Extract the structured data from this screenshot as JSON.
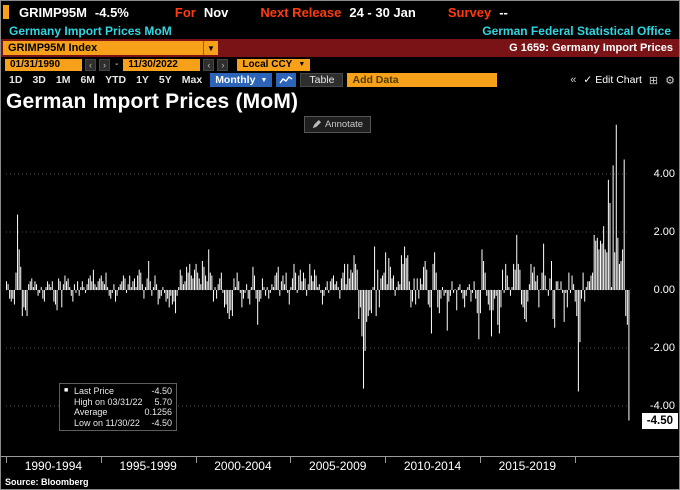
{
  "icons": {
    "dropdown": "▼",
    "prev": "‹",
    "next": "›",
    "collapse": "«",
    "check": "✓",
    "gear": "⚙",
    "grid": "⊞",
    "legend_marker": "■"
  },
  "colors": {
    "amber": "#f7a11a",
    "maroon": "#7a1315",
    "cyan": "#2fd6e2",
    "label_red": "#ff3b10",
    "period_blue": "#2b64b8",
    "bar_white": "#ffffff",
    "background": "#000000"
  },
  "top_bar": {
    "ticker": "GRIMP95M",
    "change": "-4.5%",
    "for_label": "For",
    "for_value": "Nov",
    "next_release_label": "Next Release",
    "next_release_value": "24 - 30 Jan",
    "survey_label": "Survey",
    "survey_value": "--"
  },
  "subtitle_bar": {
    "description": "Germany Import Prices MoM",
    "source_org": "German Federal Statistical Office"
  },
  "security_bar": {
    "security_input": "GRIMP95M Index",
    "chart_id": "G 1659: Germany Import Prices"
  },
  "toolbar": {
    "date_from": "01/31/1990",
    "date_to": "11/30/2022",
    "currency": "Local CCY",
    "ranges": [
      "1D",
      "3D",
      "1M",
      "6M",
      "YTD",
      "1Y",
      "5Y",
      "Max"
    ],
    "period": "Monthly",
    "table_label": "Table",
    "add_data_label": "Add Data",
    "edit_chart_label": "Edit Chart"
  },
  "chart": {
    "title": "German Import Prices (MoM)",
    "annotate_label": "Annotate",
    "y_ticks": [
      "4.00",
      "2.00",
      "0.00",
      "-2.00",
      "-4.00"
    ],
    "last_price_badge": "-4.50",
    "legend": {
      "rows": [
        {
          "label": "Last Price",
          "value": "-4.50"
        },
        {
          "label": "High on 03/31/22",
          "value": "5.70"
        },
        {
          "label": "Average",
          "value": "0.1256"
        },
        {
          "label": "Low on 11/30/22",
          "value": "-4.50"
        }
      ]
    },
    "x_labels": [
      "1990-1994",
      "1995-1999",
      "2000-2004",
      "2005-2009",
      "2010-2014",
      "2015-2019"
    ]
  },
  "footer": {
    "source": "Source: Bloomberg"
  },
  "chart_data": {
    "type": "bar",
    "title": "German Import Prices (MoM)",
    "frequency": "monthly",
    "x_start": "1990-01",
    "x_end": "2022-11",
    "ylim": [
      -4.9,
      5.9
    ],
    "y_gridlines": [
      4,
      2,
      0,
      -2,
      -4
    ],
    "stats": {
      "last": -4.5,
      "high": 5.7,
      "high_date": "03/31/22",
      "average": 0.1256,
      "low": -4.5,
      "low_date": "11/30/22"
    },
    "values": [
      0.3,
      0.2,
      -0.3,
      -0.4,
      -0.3,
      -0.5,
      0.6,
      2.6,
      1.4,
      0.8,
      -0.9,
      -0.6,
      -0.7,
      -0.9,
      0.2,
      0.3,
      0.4,
      0.1,
      0.3,
      0.2,
      -0.2,
      -0.1,
      0.1,
      -0.3,
      -0.4,
      0.1,
      0.3,
      0.2,
      0.1,
      0.3,
      -0.4,
      -0.5,
      -0.7,
      0.4,
      0.3,
      -0.6,
      0.2,
      0.5,
      0.3,
      0.4,
      0.1,
      -0.2,
      -0.4,
      0.2,
      -0.1,
      0.3,
      -0.2,
      0.1,
      0.3,
      0.1,
      -0.1,
      0.2,
      0.4,
      0.5,
      0.3,
      0.7,
      0.2,
      0.1,
      0.3,
      0.4,
      0.5,
      0.3,
      0.2,
      0.6,
      0.1,
      -0.2,
      -0.3,
      -0.1,
      0.2,
      -0.4,
      -0.2,
      0.1,
      0.2,
      0.3,
      0.5,
      0.4,
      -0.1,
      0.2,
      0.5,
      0.1,
      0.3,
      0.4,
      0.1,
      0.5,
      0.7,
      0.6,
      0.2,
      -0.3,
      0.1,
      0.4,
      1.0,
      0.3,
      -0.2,
      0.1,
      0.5,
      0.2,
      -0.5,
      -0.3,
      -0.2,
      0.1,
      -0.1,
      -0.4,
      -0.3,
      -0.6,
      -0.2,
      -0.5,
      -0.4,
      -0.8,
      -0.2,
      0.1,
      0.7,
      0.5,
      0.2,
      0.3,
      0.8,
      0.6,
      0.9,
      0.5,
      0.4,
      0.7,
      0.9,
      0.6,
      0.4,
      0.2,
      1.0,
      0.8,
      0.5,
      0.3,
      1.4,
      0.6,
      0.5,
      -0.4,
      0.1,
      -0.3,
      0.2,
      0.4,
      0.6,
      -0.1,
      -0.6,
      -0.5,
      -0.8,
      -1.0,
      -0.7,
      -0.9,
      0.4,
      0.1,
      0.6,
      0.3,
      -0.1,
      -0.6,
      -0.3,
      -0.1,
      0.2,
      -0.3,
      -0.5,
      0.1,
      0.8,
      0.5,
      -0.3,
      -1.2,
      -0.4,
      -0.3,
      0.4,
      0.1,
      -0.2,
      0.1,
      -0.3,
      -0.1,
      0.2,
      0.1,
      0.5,
      0.6,
      0.8,
      -0.2,
      0.3,
      0.5,
      0.2,
      0.6,
      -0.1,
      -0.5,
      0.1,
      0.4,
      0.9,
      0.6,
      -0.1,
      0.5,
      0.7,
      0.3,
      0.6,
      0.4,
      -0.2,
      0.2,
      0.9,
      0.5,
      0.3,
      0.7,
      0.5,
      0.1,
      0.2,
      -0.1,
      -0.5,
      -0.2,
      0.1,
      0.3,
      -0.1,
      0.3,
      0.4,
      0.5,
      0.2,
      0.3,
      0.1,
      -0.3,
      0.4,
      0.6,
      0.9,
      0.2,
      0.9,
      0.4,
      0.7,
      0.6,
      1.2,
      0.9,
      0.7,
      -1.0,
      -0.6,
      -1.6,
      -3.4,
      -2.1,
      -1.1,
      -0.9,
      -0.7,
      -0.8,
      0.1,
      1.5,
      -0.9,
      0.7,
      -0.6,
      0.4,
      0.5,
      0.6,
      1.3,
      0.2,
      1.1,
      0.8,
      0.4,
      0.5,
      -0.2,
      0.1,
      0.3,
      0.2,
      1.2,
      0.9,
      1.5,
      1.1,
      1.2,
      0.3,
      -0.6,
      -0.4,
      0.4,
      -0.5,
      0.4,
      -0.3,
      0.4,
      0.2,
      0.8,
      1.0,
      0.7,
      -0.5,
      -0.6,
      -1.5,
      0.9,
      1.3,
      0.6,
      -0.6,
      -0.8,
      -0.3,
      0.1,
      -0.2,
      -0.1,
      -1.4,
      -0.4,
      -0.2,
      0.3,
      -0.1,
      0.0,
      -0.7,
      0.1,
      0.2,
      -0.1,
      -0.3,
      -0.6,
      -0.2,
      0.1,
      0.2,
      -0.4,
      -0.1,
      0.3,
      -0.3,
      -0.8,
      -1.7,
      -0.8,
      1.4,
      1.0,
      0.6,
      -0.2,
      -0.5,
      -0.7,
      -1.6,
      -0.7,
      -0.3,
      -0.2,
      -1.2,
      -1.5,
      -0.6,
      0.7,
      -0.1,
      0.9,
      0.5,
      0.1,
      -0.2,
      0.1,
      0.9,
      0.7,
      1.9,
      0.9,
      0.7,
      -0.5,
      -0.6,
      -1.0,
      -1.1,
      -0.4,
      0.2,
      0.9,
      0.6,
      0.8,
      0.3,
      0.5,
      -0.6,
      0.0,
      0.6,
      1.6,
      0.5,
      0.0,
      -0.2,
      0.4,
      1.0,
      -1.0,
      -1.3,
      0.3,
      0.3,
      0.0,
      0.3,
      -0.1,
      -1.1,
      -0.1,
      -0.6,
      0.6,
      -0.1,
      0.5,
      0.2,
      -0.4,
      -0.9,
      -3.5,
      -1.8,
      -0.3,
      0.6,
      -0.4,
      0.1,
      0.3,
      0.3,
      0.5,
      0.6,
      1.9,
      1.7,
      1.8,
      1.4,
      1.7,
      1.6,
      2.2,
      1.4,
      1.3,
      3.8,
      3.0,
      0.1,
      4.3,
      1.3,
      5.7,
      1.8,
      0.9,
      1.0,
      1.4,
      4.5,
      -0.9,
      -1.2,
      -4.5
    ]
  }
}
